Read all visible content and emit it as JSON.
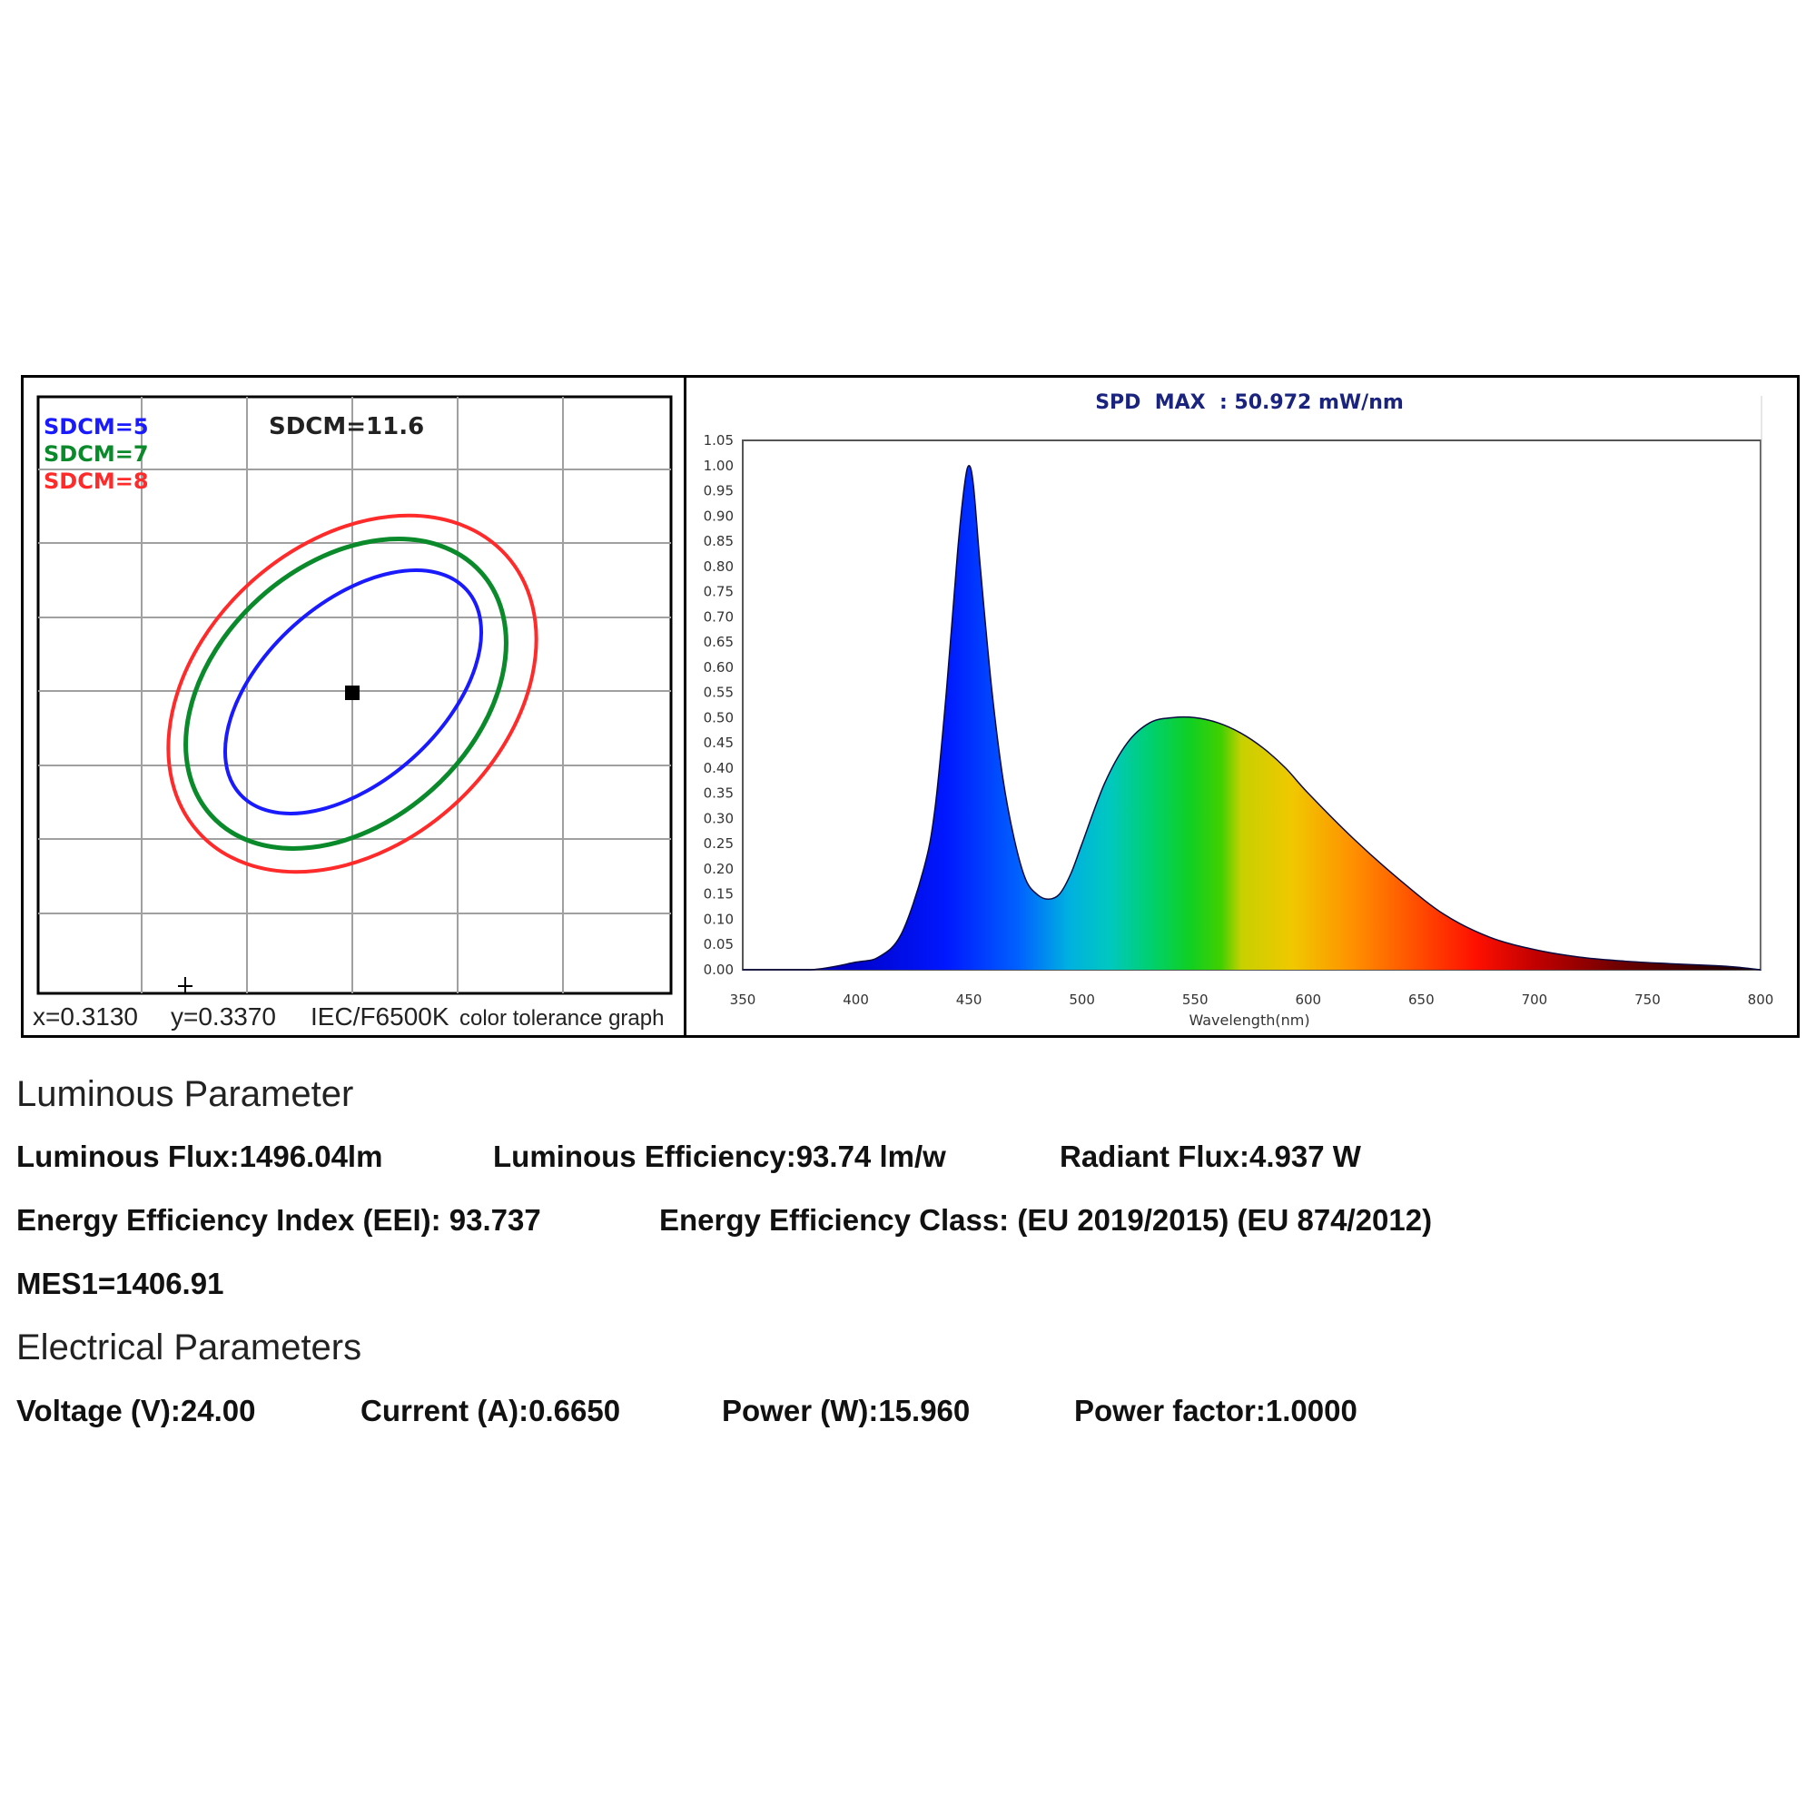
{
  "sdcm_chart": {
    "legend": [
      {
        "label": "SDCM=5",
        "color": "#1a1aff"
      },
      {
        "label": "SDCM=7",
        "color": "#0a8a2a"
      },
      {
        "label": "SDCM=8",
        "color": "#ff2a2a"
      }
    ],
    "sdcm_value": "SDCM=11.6",
    "x_label": "x=0.3130",
    "y_label": "y=0.3370",
    "standard": "IEC/F6500K",
    "caption": "color tolerance graph"
  },
  "chart_data": {
    "type": "area",
    "title": "SPD  MAX  : 50.972 mW/nm",
    "xlabel": "Wavelength(nm)",
    "ylabel": "",
    "xlim": [
      350,
      800
    ],
    "ylim": [
      0,
      1.05
    ],
    "x_ticks": [
      "350",
      "400",
      "450",
      "500",
      "550",
      "600",
      "650",
      "700",
      "750",
      "800"
    ],
    "y_ticks": [
      "0.00",
      "0.05",
      "0.10",
      "0.15",
      "0.20",
      "0.25",
      "0.30",
      "0.35",
      "0.40",
      "0.45",
      "0.50",
      "0.55",
      "0.60",
      "0.65",
      "0.70",
      "0.75",
      "0.80",
      "0.85",
      "0.90",
      "0.95",
      "1.00",
      "1.05"
    ],
    "x": [
      350,
      380,
      400,
      410,
      420,
      430,
      435,
      440,
      445,
      448,
      450,
      452,
      455,
      460,
      465,
      470,
      475,
      480,
      485,
      490,
      495,
      500,
      510,
      520,
      530,
      540,
      550,
      560,
      570,
      580,
      590,
      600,
      620,
      640,
      660,
      680,
      700,
      720,
      740,
      760,
      780,
      790,
      800
    ],
    "y": [
      0.0,
      0.0,
      0.015,
      0.025,
      0.07,
      0.2,
      0.32,
      0.55,
      0.83,
      0.96,
      1.0,
      0.96,
      0.8,
      0.56,
      0.38,
      0.26,
      0.18,
      0.15,
      0.14,
      0.15,
      0.19,
      0.25,
      0.37,
      0.45,
      0.49,
      0.5,
      0.5,
      0.49,
      0.47,
      0.44,
      0.4,
      0.35,
      0.26,
      0.18,
      0.11,
      0.065,
      0.04,
      0.025,
      0.017,
      0.012,
      0.008,
      0.005,
      0.0
    ]
  },
  "luminous": {
    "title": "Luminous Parameter",
    "flux": "Luminous Flux:1496.04lm",
    "efficiency": "Luminous Efficiency:93.74 lm/w",
    "radiant": "Radiant Flux:4.937 W",
    "eei": "Energy Efficiency Index (EEI): 93.737",
    "eec": "Energy Efficiency Class: (EU 2019/2015) (EU 874/2012)",
    "mes": "MES1=1406.91"
  },
  "electrical": {
    "title": "Electrical Parameters",
    "voltage": "Voltage (V):24.00",
    "current": "Current (A):0.6650",
    "power": "Power (W):15.960",
    "pf": "Power factor:1.0000"
  }
}
